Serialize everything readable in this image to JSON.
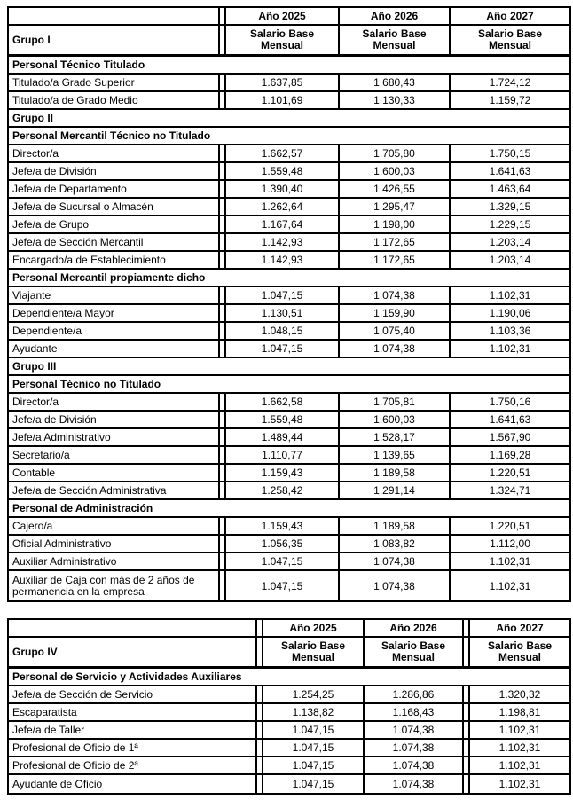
{
  "tables": [
    {
      "group_label": "Grupo I",
      "year_headers": [
        "Año 2025",
        "Año 2026",
        "Año 2027"
      ],
      "salary_header": "Salario Base\nMensual",
      "rows": [
        {
          "type": "section",
          "label": "Personal Técnico Titulado"
        },
        {
          "type": "data",
          "label": "Titulado/a Grado Superior",
          "values": [
            "1.637,85",
            "1.680,43",
            "1.724,12"
          ]
        },
        {
          "type": "data",
          "label": "Titulado/a de Grado Medio",
          "values": [
            "1.101,69",
            "1.130,33",
            "1.159,72"
          ]
        },
        {
          "type": "group",
          "label": "Grupo II"
        },
        {
          "type": "section",
          "label": "Personal Mercantil Técnico no Titulado"
        },
        {
          "type": "data",
          "label": "Director/a",
          "values": [
            "1.662,57",
            "1.705,80",
            "1.750,15"
          ]
        },
        {
          "type": "data",
          "label": "Jefe/a de División",
          "values": [
            "1.559,48",
            "1.600,03",
            "1.641,63"
          ]
        },
        {
          "type": "data",
          "label": "Jefe/a de Departamento",
          "values": [
            "1.390,40",
            "1.426,55",
            "1.463,64"
          ]
        },
        {
          "type": "data",
          "label": "Jefe/a de Sucursal o Almacén",
          "values": [
            "1.262,64",
            "1.295,47",
            "1.329,15"
          ]
        },
        {
          "type": "data",
          "label": "Jefe/a de Grupo",
          "values": [
            "1.167,64",
            "1.198,00",
            "1.229,15"
          ]
        },
        {
          "type": "data",
          "label": "Jefe/a de Sección Mercantil",
          "values": [
            "1.142,93",
            "1.172,65",
            "1.203,14"
          ]
        },
        {
          "type": "data",
          "label": "Encargado/a de Establecimiento",
          "values": [
            "1.142,93",
            "1.172,65",
            "1.203,14"
          ]
        },
        {
          "type": "section",
          "label": "Personal Mercantil propiamente dicho"
        },
        {
          "type": "data",
          "label": "Viajante",
          "values": [
            "1.047,15",
            "1.074,38",
            "1.102,31"
          ]
        },
        {
          "type": "data",
          "label": "Dependiente/a Mayor",
          "values": [
            "1.130,51",
            "1.159,90",
            "1.190,06"
          ]
        },
        {
          "type": "data",
          "label": "Dependiente/a",
          "values": [
            "1.048,15",
            "1.075,40",
            "1.103,36"
          ]
        },
        {
          "type": "data",
          "label": "Ayudante",
          "values": [
            "1.047,15",
            "1.074,38",
            "1.102,31"
          ]
        },
        {
          "type": "group",
          "label": "Grupo III"
        },
        {
          "type": "section",
          "label": "Personal Técnico no Titulado"
        },
        {
          "type": "data",
          "label": "Director/a",
          "values": [
            "1.662,58",
            "1.705,81",
            "1.750,16"
          ]
        },
        {
          "type": "data",
          "label": "Jefe/a de División",
          "values": [
            "1.559,48",
            "1.600,03",
            "1.641,63"
          ]
        },
        {
          "type": "data",
          "label": "Jefe/a Administrativo",
          "values": [
            "1.489,44",
            "1.528,17",
            "1.567,90"
          ]
        },
        {
          "type": "data",
          "label": "Secretario/a",
          "values": [
            "1.110,77",
            "1.139,65",
            "1.169,28"
          ]
        },
        {
          "type": "data",
          "label": "Contable",
          "values": [
            "1.159,43",
            "1.189,58",
            "1.220,51"
          ]
        },
        {
          "type": "data",
          "label": "Jefe/a de Sección Administrativa",
          "values": [
            "1.258,42",
            "1.291,14",
            "1.324,71"
          ]
        },
        {
          "type": "section",
          "label": "Personal de Administración"
        },
        {
          "type": "data",
          "label": "Cajero/a",
          "values": [
            "1.159,43",
            "1.189,58",
            "1.220,51"
          ]
        },
        {
          "type": "data",
          "label": "Oficial Administrativo",
          "values": [
            "1.056,35",
            "1.083,82",
            "1.112,00"
          ]
        },
        {
          "type": "data",
          "label": "Auxiliar Administrativo",
          "values": [
            "1.047,15",
            "1.074,38",
            "1.102,31"
          ]
        },
        {
          "type": "data",
          "label": "Auxiliar de Caja con más de 2 años de permanencia en la empresa",
          "values": [
            "1.047,15",
            "1.074,38",
            "1.102,31"
          ],
          "tall": true
        }
      ]
    },
    {
      "group_label": "Grupo IV",
      "year_headers": [
        "Año 2025",
        "Año 2026",
        "Año 2027"
      ],
      "salary_header": "Salario Base\nMensual",
      "rows": [
        {
          "type": "section",
          "label": "Personal de Servicio y Actividades Auxiliares"
        },
        {
          "type": "data",
          "label": "Jefe/a de Sección de Servicio",
          "values": [
            "1.254,25",
            "1.286,86",
            "1.320,32"
          ]
        },
        {
          "type": "data",
          "label": "Escaparatista",
          "values": [
            "1.138,82",
            "1.168,43",
            "1.198,81"
          ]
        },
        {
          "type": "data",
          "label": "Jefe/a de Taller",
          "values": [
            "1.047,15",
            "1.074,38",
            "1.102,31"
          ]
        },
        {
          "type": "data",
          "label": "Profesional de Oficio de 1ª",
          "values": [
            "1.047,15",
            "1.074,38",
            "1.102,31"
          ]
        },
        {
          "type": "data",
          "label": "Profesional de Oficio de 2ª",
          "values": [
            "1.047,15",
            "1.074,38",
            "1.102,31"
          ]
        },
        {
          "type": "data",
          "label": "Ayudante de Oficio",
          "values": [
            "1.047,15",
            "1.074,38",
            "1.102,31"
          ]
        }
      ]
    }
  ]
}
